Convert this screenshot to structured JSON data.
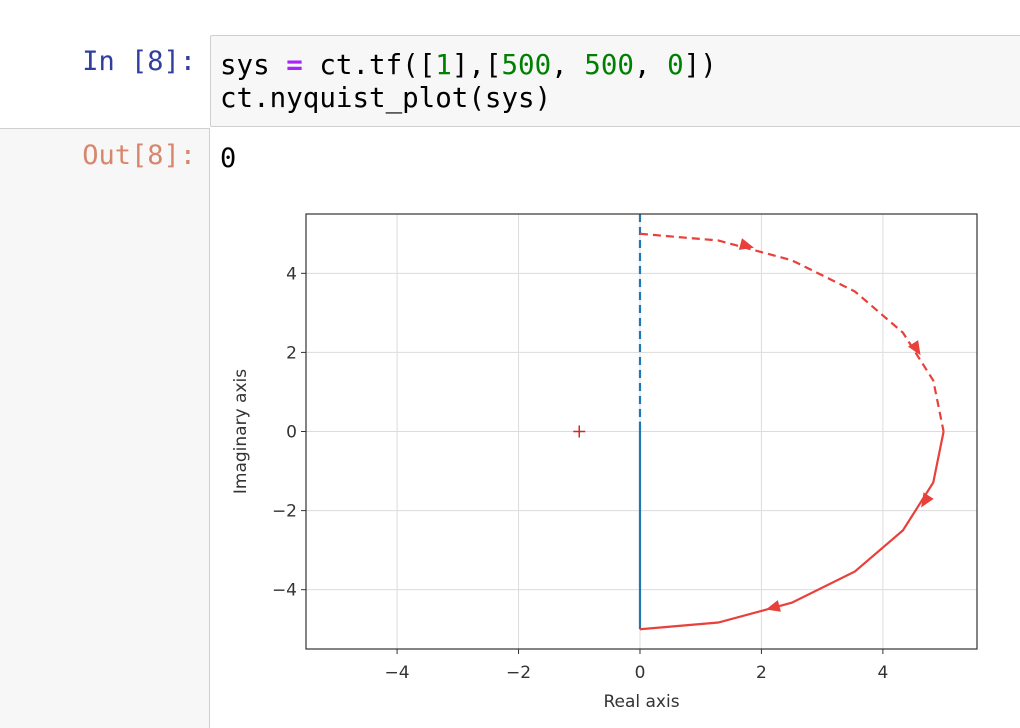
{
  "notebook": {
    "input_prompt": "In [8]:",
    "code": [
      [
        {
          "text": "sys ",
          "color": "#000000"
        },
        {
          "text": "=",
          "color": "#aa22ff",
          "bold": true
        },
        {
          "text": " ct.tf([",
          "color": "#000000"
        },
        {
          "text": "1",
          "color": "#008000"
        },
        {
          "text": "],[",
          "color": "#000000"
        },
        {
          "text": "500",
          "color": "#008000"
        },
        {
          "text": ", ",
          "color": "#000000"
        },
        {
          "text": "500",
          "color": "#008000"
        },
        {
          "text": ", ",
          "color": "#000000"
        },
        {
          "text": "0",
          "color": "#008000"
        },
        {
          "text": "])",
          "color": "#000000"
        }
      ],
      [
        {
          "text": "ct.nyquist_plot(sys)",
          "color": "#000000"
        }
      ]
    ],
    "output_prompt": "Out[8]:",
    "output": "0"
  },
  "chart_data": {
    "type": "line",
    "x_label": "Real axis",
    "y_label": "Imaginary axis",
    "xlim": [
      -5.5,
      5.55
    ],
    "ylim": [
      -5.5,
      5.5
    ],
    "xticks": [
      {
        "value": -4,
        "label": "−4"
      },
      {
        "value": -2,
        "label": "−2"
      },
      0,
      2,
      4
    ],
    "yticks": [
      {
        "value": -4,
        "label": "−4"
      },
      {
        "value": -2,
        "label": "−2"
      },
      0,
      2,
      4
    ],
    "grid": true,
    "series": [
      {
        "color": "#1f77b4",
        "linestyle": "solid",
        "x": [
          0,
          0
        ],
        "y": [
          0.25,
          -5
        ]
      },
      {
        "color": "#1f77b4",
        "linestyle": "dashed",
        "x": [
          0,
          0
        ],
        "y": [
          5.5,
          0.25
        ]
      },
      {
        "color": "#e8403a",
        "linestyle": "solid",
        "x": [
          5,
          4.83,
          4.33,
          3.54,
          2.5,
          1.29,
          0
        ],
        "y": [
          0,
          -1.29,
          -2.5,
          -3.54,
          -4.33,
          -4.83,
          -5
        ],
        "arrows": [
          {
            "x": 4.7,
            "y": -1.75
          },
          {
            "x": 2.2,
            "y": -4.45
          }
        ]
      },
      {
        "color": "#e8403a",
        "linestyle": "dashed",
        "x": [
          0,
          1.29,
          2.5,
          3.54,
          4.33,
          4.83,
          5
        ],
        "y": [
          5,
          4.83,
          4.33,
          3.54,
          2.5,
          1.29,
          0
        ],
        "arrows": [
          {
            "x": 1.75,
            "y": 4.7
          },
          {
            "x": 4.55,
            "y": 2.1
          }
        ]
      }
    ],
    "points": [
      {
        "x": -1,
        "y": 0,
        "color": "#d62728",
        "marker": "+"
      }
    ]
  }
}
